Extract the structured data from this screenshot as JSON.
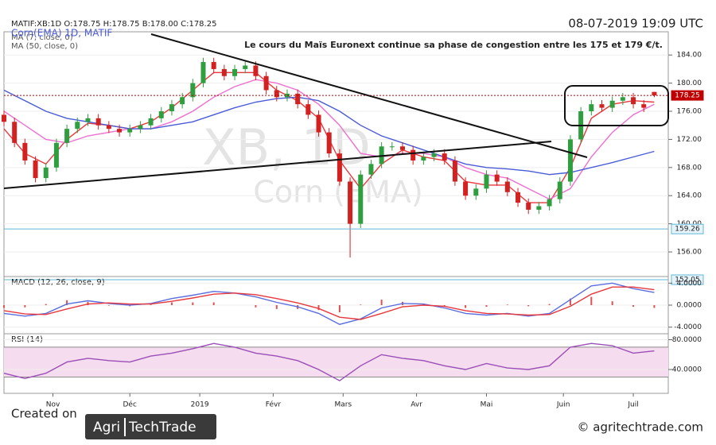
{
  "header": {
    "ohlc": "MATIF:XB:1D O:178.75 H:178.75 B:178.00 C:178.25",
    "timestamp": "08-07-2019 19:09 UTC",
    "annotation": "Le cours du Maïs Euronext continue sa phase de congestion entre les 175 et 179 €/t.",
    "watermark_1": "XB, 1D",
    "watermark_2": "Corn (EMA)",
    "legend_text": "Corn(EMA) 1D, MATIF"
  },
  "chart_data": [
    {
      "type": "candlestick",
      "xlim": [
        0,
        190
      ],
      "ylim": [
        152.5,
        187.3
      ],
      "yticks": [
        {
          "value": 156,
          "label": "156.00"
        },
        {
          "value": 160,
          "label": "160.00"
        },
        {
          "value": 164,
          "label": "164.00"
        },
        {
          "value": 168,
          "label": "168.00"
        },
        {
          "value": 172,
          "label": "172.00"
        },
        {
          "value": 176,
          "label": "176.00"
        },
        {
          "value": 180,
          "label": "180.00"
        },
        {
          "value": 184,
          "label": "184.00"
        }
      ],
      "up_color": "#2e9e3e",
      "down_color": "#d32020",
      "x": [
        0,
        3,
        6,
        9,
        12,
        15,
        18,
        21,
        24,
        27,
        30,
        33,
        36,
        39,
        42,
        45,
        48,
        51,
        54,
        57,
        60,
        63,
        66,
        69,
        72,
        75,
        78,
        81,
        84,
        87,
        90,
        93,
        96,
        99,
        102,
        105,
        108,
        111,
        114,
        117,
        120,
        123,
        126,
        129,
        132,
        135,
        138,
        141,
        144,
        147,
        150,
        153,
        156,
        159,
        162,
        165,
        168,
        171,
        174,
        177,
        180,
        183,
        186
      ],
      "open": [
        175.5,
        174.5,
        171.5,
        169,
        166.5,
        168,
        171.5,
        173.5,
        174.5,
        175,
        174,
        173.5,
        173,
        173.5,
        174,
        175,
        176,
        177,
        178,
        180,
        183,
        182,
        181,
        182,
        182.5,
        181,
        179,
        178,
        178.5,
        177,
        175.5,
        173,
        170,
        166,
        160,
        167,
        168.5,
        171,
        171,
        170.5,
        169,
        169.5,
        170,
        169,
        166,
        164,
        165,
        167,
        166,
        164.5,
        163,
        162,
        162.5,
        163.5,
        166,
        172,
        176,
        177,
        176.5,
        177.5,
        178,
        177,
        178.75
      ],
      "high": [
        176.1,
        175.1,
        172.1,
        169.6,
        168.6,
        172.1,
        174.1,
        175.1,
        175.6,
        175.6,
        174.6,
        174.1,
        174.1,
        174.6,
        175.6,
        176.6,
        177.6,
        178.6,
        180.6,
        183.6,
        183.6,
        182.6,
        182.6,
        183.1,
        183.1,
        181.6,
        179.6,
        179.1,
        179.1,
        177.6,
        176.1,
        173.6,
        170.6,
        166.6,
        167.6,
        169.1,
        171.6,
        171.6,
        171.6,
        171.1,
        170.1,
        170.6,
        170.6,
        169.6,
        166.6,
        165.6,
        167.6,
        167.6,
        166.6,
        165.1,
        163.6,
        163.1,
        164.1,
        166.6,
        172.6,
        176.6,
        177.6,
        177.6,
        178.1,
        178.6,
        178.6,
        177.6,
        178.75
      ],
      "low": [
        173.9,
        170.9,
        168.4,
        165.9,
        165.9,
        167.4,
        170.9,
        172.9,
        173.9,
        173.4,
        172.9,
        172.4,
        172.4,
        172.9,
        173.4,
        174.4,
        175.4,
        176.4,
        177.4,
        179.4,
        181.4,
        180.4,
        180.4,
        181.4,
        180.4,
        178.4,
        177.4,
        177.4,
        176.4,
        174.9,
        172.4,
        169.4,
        165.4,
        155.2,
        159.4,
        166.4,
        167.9,
        170.4,
        169.9,
        168.4,
        168.4,
        168.9,
        168.4,
        165.4,
        163.4,
        163.4,
        164.4,
        165.4,
        163.9,
        162.4,
        161.4,
        161.4,
        161.9,
        162.9,
        165.4,
        171.4,
        175.4,
        175.9,
        175.9,
        176.9,
        176.4,
        175.9,
        178.0
      ],
      "close": [
        174.5,
        171.5,
        169,
        166.5,
        168,
        171.5,
        173.5,
        174.5,
        175,
        174,
        173.5,
        173,
        173.5,
        174,
        175,
        176,
        177,
        178,
        180,
        183,
        182,
        181,
        182,
        182.5,
        181,
        179,
        178,
        178.5,
        177,
        175.5,
        173,
        170,
        166,
        160,
        167,
        168.5,
        171,
        171,
        170.5,
        169,
        169.5,
        170,
        169,
        166,
        164,
        165,
        167,
        166,
        164.5,
        163,
        162,
        162.5,
        163.5,
        166,
        172,
        176,
        177,
        176.5,
        177.5,
        178,
        177,
        176.5,
        178.25
      ],
      "series": [
        {
          "name": "MA (7, close, 0)",
          "color": "#e8383d",
          "x": [
            0,
            6,
            12,
            18,
            24,
            30,
            36,
            42,
            48,
            54,
            60,
            66,
            72,
            78,
            84,
            90,
            96,
            102,
            108,
            114,
            120,
            126,
            132,
            138,
            144,
            150,
            156,
            162,
            168,
            174,
            180,
            186
          ],
          "values": [
            173.5,
            170,
            168.5,
            172,
            174.3,
            174,
            173.5,
            174.5,
            176.5,
            179,
            181.5,
            181.5,
            181.5,
            179,
            177.5,
            175,
            169,
            165,
            168.5,
            170.5,
            169.5,
            169,
            166,
            165.5,
            165.5,
            163,
            163,
            168,
            175,
            177,
            177.5,
            177.3
          ]
        },
        {
          "color": "#ee6fd0",
          "x": [
            0,
            6,
            12,
            18,
            24,
            30,
            36,
            42,
            48,
            54,
            60,
            66,
            72,
            78,
            84,
            90,
            96,
            102,
            108,
            114,
            120,
            126,
            132,
            138,
            144,
            150,
            156,
            162,
            168,
            174,
            180,
            186
          ],
          "values": [
            176,
            174,
            172,
            171.5,
            172.5,
            173,
            173.5,
            173.5,
            174.5,
            176,
            178,
            179.5,
            180.5,
            180,
            179,
            177,
            174,
            170,
            169.5,
            170,
            170,
            169.5,
            168,
            167,
            166.5,
            165,
            163.5,
            165,
            169.5,
            173,
            175.5,
            177
          ]
        },
        {
          "name": "MA (50, close, 0)",
          "color": "#4a5bd8",
          "x": [
            0,
            6,
            12,
            18,
            24,
            30,
            36,
            42,
            48,
            54,
            60,
            66,
            72,
            78,
            84,
            90,
            96,
            102,
            108,
            114,
            120,
            126,
            132,
            138,
            144,
            150,
            156,
            162,
            168,
            174,
            180,
            186
          ],
          "values": [
            179,
            177.5,
            176,
            175,
            174.5,
            174,
            173.5,
            173.5,
            174,
            174.5,
            175.5,
            176.5,
            177.3,
            177.8,
            178,
            177.5,
            176,
            174,
            172.5,
            171.5,
            170.5,
            169.5,
            168.5,
            168,
            167.8,
            167.5,
            167,
            167.3,
            168,
            168.7,
            169.5,
            170.3
          ]
        }
      ],
      "price_lines": [
        {
          "value": 178.25,
          "color": "#c00000",
          "dashed": true
        },
        {
          "value": 159.26,
          "color": "#5fb8d8",
          "dashed": false
        },
        {
          "value": 152.05,
          "color": "#5fb8d8",
          "dashed": false
        }
      ]
    },
    {
      "type": "line",
      "title": "MACD (12, 26, close, 9)",
      "xlim": [
        0,
        190
      ],
      "ylim": [
        -5.2,
        5.2
      ],
      "yticks": [
        {
          "value": -4,
          "label": "-4.0000"
        },
        {
          "value": 0,
          "label": "0.0000"
        },
        {
          "value": 4,
          "label": "4.0000"
        }
      ],
      "series": [
        {
          "style": "bar",
          "color": "#e05050",
          "x": [
            0,
            6,
            12,
            18,
            24,
            30,
            36,
            42,
            48,
            54,
            60,
            66,
            72,
            78,
            84,
            90,
            96,
            102,
            108,
            114,
            120,
            126,
            132,
            138,
            144,
            150,
            156,
            162,
            168,
            174,
            180,
            186
          ],
          "values": [
            -0.5,
            -0.4,
            0.2,
            0.9,
            0.6,
            -0.1,
            -0.2,
            0.1,
            0.5,
            0.5,
            0.5,
            0,
            -0.4,
            -0.7,
            -0.7,
            -0.9,
            -1.3,
            0.1,
            1,
            0.6,
            0.2,
            -0.3,
            -0.5,
            -0.3,
            0.1,
            -0.2,
            0.2,
            1.2,
            1.5,
            0.7,
            -0.3,
            -0.5
          ]
        },
        {
          "style": "line",
          "color": "#5a6ee0",
          "x": [
            0,
            6,
            12,
            18,
            24,
            30,
            36,
            42,
            48,
            54,
            60,
            66,
            72,
            78,
            84,
            90,
            96,
            102,
            108,
            114,
            120,
            126,
            132,
            138,
            144,
            150,
            156,
            162,
            168,
            174,
            180,
            186
          ],
          "values": [
            -1.5,
            -2,
            -1.5,
            0.2,
            0.8,
            0.3,
            0,
            0.3,
            1.2,
            1.8,
            2.5,
            2.2,
            1.5,
            0.5,
            -0.3,
            -1.5,
            -3.5,
            -2.5,
            -0.5,
            0.3,
            0.2,
            -0.5,
            -1.5,
            -1.8,
            -1.5,
            -2,
            -1.5,
            1,
            3.5,
            4,
            3,
            2.3
          ]
        },
        {
          "style": "line",
          "color": "#e8383d",
          "x": [
            0,
            6,
            12,
            18,
            24,
            30,
            36,
            42,
            48,
            54,
            60,
            66,
            72,
            78,
            84,
            90,
            96,
            102,
            108,
            114,
            120,
            126,
            132,
            138,
            144,
            150,
            156,
            162,
            168,
            174,
            180,
            186
          ],
          "values": [
            -1,
            -1.6,
            -1.7,
            -0.7,
            0.2,
            0.4,
            0.2,
            0.2,
            0.7,
            1.3,
            2,
            2.2,
            1.9,
            1.2,
            0.4,
            -0.6,
            -2.2,
            -2.6,
            -1.5,
            -0.3,
            0,
            -0.2,
            -1,
            -1.5,
            -1.6,
            -1.8,
            -1.7,
            -0.2,
            2,
            3.3,
            3.3,
            2.8
          ]
        }
      ]
    },
    {
      "type": "line",
      "title": "RSI (14)",
      "xlim": [
        0,
        190
      ],
      "ylim": [
        8,
        88
      ],
      "band": [
        30,
        70
      ],
      "band_color": "#f6dcef",
      "yticks": [
        {
          "value": 40,
          "label": "40.0000"
        },
        {
          "value": 80,
          "label": "80.0000"
        }
      ],
      "xticks": [
        {
          "value": 14,
          "label": "Nov"
        },
        {
          "value": 36,
          "label": "Déc"
        },
        {
          "value": 56,
          "label": "2019"
        },
        {
          "value": 77,
          "label": "Févr"
        },
        {
          "value": 97,
          "label": "Mars"
        },
        {
          "value": 118,
          "label": "Avr"
        },
        {
          "value": 138,
          "label": "Mai"
        },
        {
          "value": 160,
          "label": "Juin"
        },
        {
          "value": 180,
          "label": "Juil"
        }
      ],
      "series": [
        {
          "style": "line",
          "color": "#9a4fb8",
          "x": [
            0,
            6,
            12,
            18,
            24,
            30,
            36,
            42,
            48,
            54,
            60,
            66,
            72,
            78,
            84,
            90,
            96,
            102,
            108,
            114,
            120,
            126,
            132,
            138,
            144,
            150,
            156,
            162,
            168,
            174,
            180,
            186
          ],
          "values": [
            35,
            28,
            35,
            50,
            55,
            52,
            50,
            58,
            62,
            68,
            75,
            70,
            62,
            58,
            52,
            40,
            25,
            45,
            60,
            55,
            52,
            45,
            40,
            48,
            42,
            40,
            45,
            70,
            75,
            72,
            62,
            65
          ]
        }
      ]
    }
  ],
  "footer": {
    "created": "Created on",
    "logo_1": "Agri",
    "logo_2": "TechTrade",
    "site": "© agritechtrade.com"
  }
}
